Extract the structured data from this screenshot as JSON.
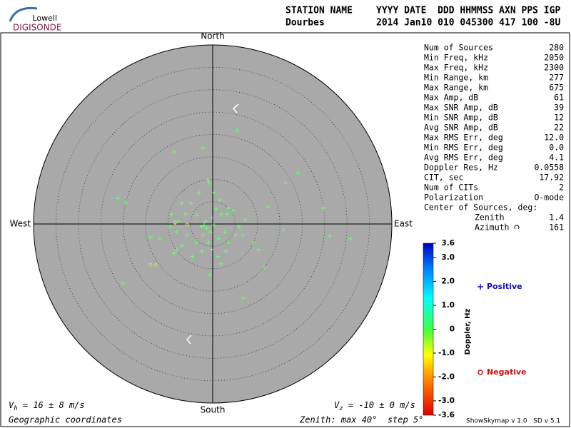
{
  "header": {
    "logo_top": "Lowell",
    "logo_bottom": "DIGISONDE",
    "labels": [
      "STATION NAME",
      "YYYY DATE  DDD HHMMSS AXN PPS IGP"
    ],
    "values": [
      "Dourbes",
      "2014 Jan10 010 045300 417 100 -8U"
    ]
  },
  "stats": {
    "rows": [
      [
        "Num of Sources",
        "280"
      ],
      [
        "Min Freq, kHz",
        "2050"
      ],
      [
        "Max Freq, kHz",
        "2300"
      ],
      [
        "Min Range, km",
        "277"
      ],
      [
        "Max Range, km",
        "675"
      ],
      [
        "Max Amp, dB",
        "61"
      ],
      [
        "Max SNR Amp, dB",
        "39"
      ],
      [
        "Min SNR Amp, dB",
        "12"
      ],
      [
        "Avg SNR Amp, dB",
        "22"
      ],
      [
        "Max RMS Err, deg",
        "12.0"
      ],
      [
        "Min RMS Err, deg",
        "0.0"
      ],
      [
        "Avg RMS Err, deg",
        "4.1"
      ],
      [
        "Doppler Res, Hz",
        "0.0558"
      ],
      [
        "CIT, sec",
        "17.92"
      ],
      [
        "Num of CITs",
        "2"
      ],
      [
        "Polarization",
        "O-mode"
      ]
    ],
    "center_title": "Center of Sources, deg:",
    "center_rows": [
      [
        "Zenith",
        "1.4"
      ],
      [
        "Azimuth",
        "161"
      ]
    ]
  },
  "chart_data": {
    "type": "skymap",
    "directions": {
      "north": "North",
      "south": "South",
      "east": "East",
      "west": "West"
    },
    "xlim": [
      -40,
      40
    ],
    "ylim": [
      -40,
      40
    ],
    "rticks": [
      5,
      10,
      15,
      20,
      25,
      30,
      35
    ],
    "series": [
      {
        "name": "Positive",
        "color": "#1010c0",
        "marker": "plus",
        "point_color": "#66ff66",
        "x": [
          5.4,
          -8.6,
          -2.1,
          19.1,
          16.3,
          -1.1,
          -0.8,
          -21.2,
          -19.3,
          24.7,
          26.1,
          30.8,
          15.8,
          7.2,
          12.3,
          4.5,
          3.2,
          1.6,
          0.3,
          -3.0,
          -4.8,
          -6.1,
          -7.6,
          -9.2,
          -9.7,
          -13.9,
          -11.8,
          -8.0,
          -5.7,
          -3.7,
          -2.1,
          -1.3,
          -0.5,
          0.3,
          -1.6,
          -2.5,
          -1.0,
          -0.2,
          1.1,
          -0.6,
          1.9,
          3.5,
          5.1,
          2.7,
          9.1,
          10.2,
          11.5,
          6.7,
          3.5,
          1.9,
          0.8,
          -4.5,
          -6.9,
          -8.6,
          -20.1,
          6.9,
          -1.9,
          -0.3,
          -3.5,
          1.3,
          2.9,
          -2.4,
          -8.1,
          5.9,
          -6.9
        ],
        "y": [
          20.9,
          16.1,
          16.9,
          11.5,
          9.1,
          9.9,
          9.2,
          5.7,
          4.8,
          3.5,
          -2.7,
          -3.3,
          -1.3,
          1.0,
          3.8,
          2.9,
          2.2,
          5.4,
          7.0,
          7.0,
          4.6,
          2.2,
          0.6,
          2.2,
          -0.6,
          -2.9,
          -3.3,
          -5.7,
          -2.5,
          -4.1,
          -2.5,
          -1.0,
          -1.8,
          -0.2,
          0.6,
          -0.6,
          -4.1,
          -5.7,
          -7.3,
          -11.3,
          -8.9,
          -4.1,
          -2.5,
          -1.8,
          -4.1,
          -5.7,
          -9.7,
          -2.5,
          3.5,
          2.2,
          3.3,
          -7.3,
          -4.9,
          -6.5,
          -13.2,
          -16.6,
          -0.3,
          1.4,
          1.9,
          -3.3,
          -6.1,
          -6.1,
          -1.8,
          -0.6,
          4.6
        ]
      },
      {
        "name": "Negative",
        "color": "#cc1010",
        "marker": "circle",
        "point_color": "#c8e060",
        "x": [
          -13.9,
          -12.7,
          -5.7,
          -8.4
        ],
        "y": [
          -9.1,
          -9.1,
          -0.2,
          0.3
        ]
      }
    ],
    "colorbar": {
      "label": "Doppler, Hz",
      "lim": [
        -3.6,
        3.6
      ],
      "ticks": [
        3.6,
        {
          "value": 3,
          "label": "3.0"
        },
        {
          "value": 2,
          "label": "2.0"
        },
        {
          "value": 1,
          "label": "1.0"
        },
        0,
        {
          "value": -1,
          "label": "-1.0"
        },
        {
          "value": -2,
          "label": "-2.0"
        },
        {
          "value": -3,
          "label": "-3.0"
        },
        -3.6
      ]
    },
    "vh": [
      "V",
      "h",
      " = 16 ± 8 m/s"
    ],
    "vz": [
      "V",
      "z",
      " = -10 ± 0 m/s"
    ]
  },
  "footer": {
    "coords": "Geographic coordinates",
    "zenith": "Zenith: max 40°  step 5°",
    "version": "ShowSkymap v 1.0   SD v 5.1"
  }
}
